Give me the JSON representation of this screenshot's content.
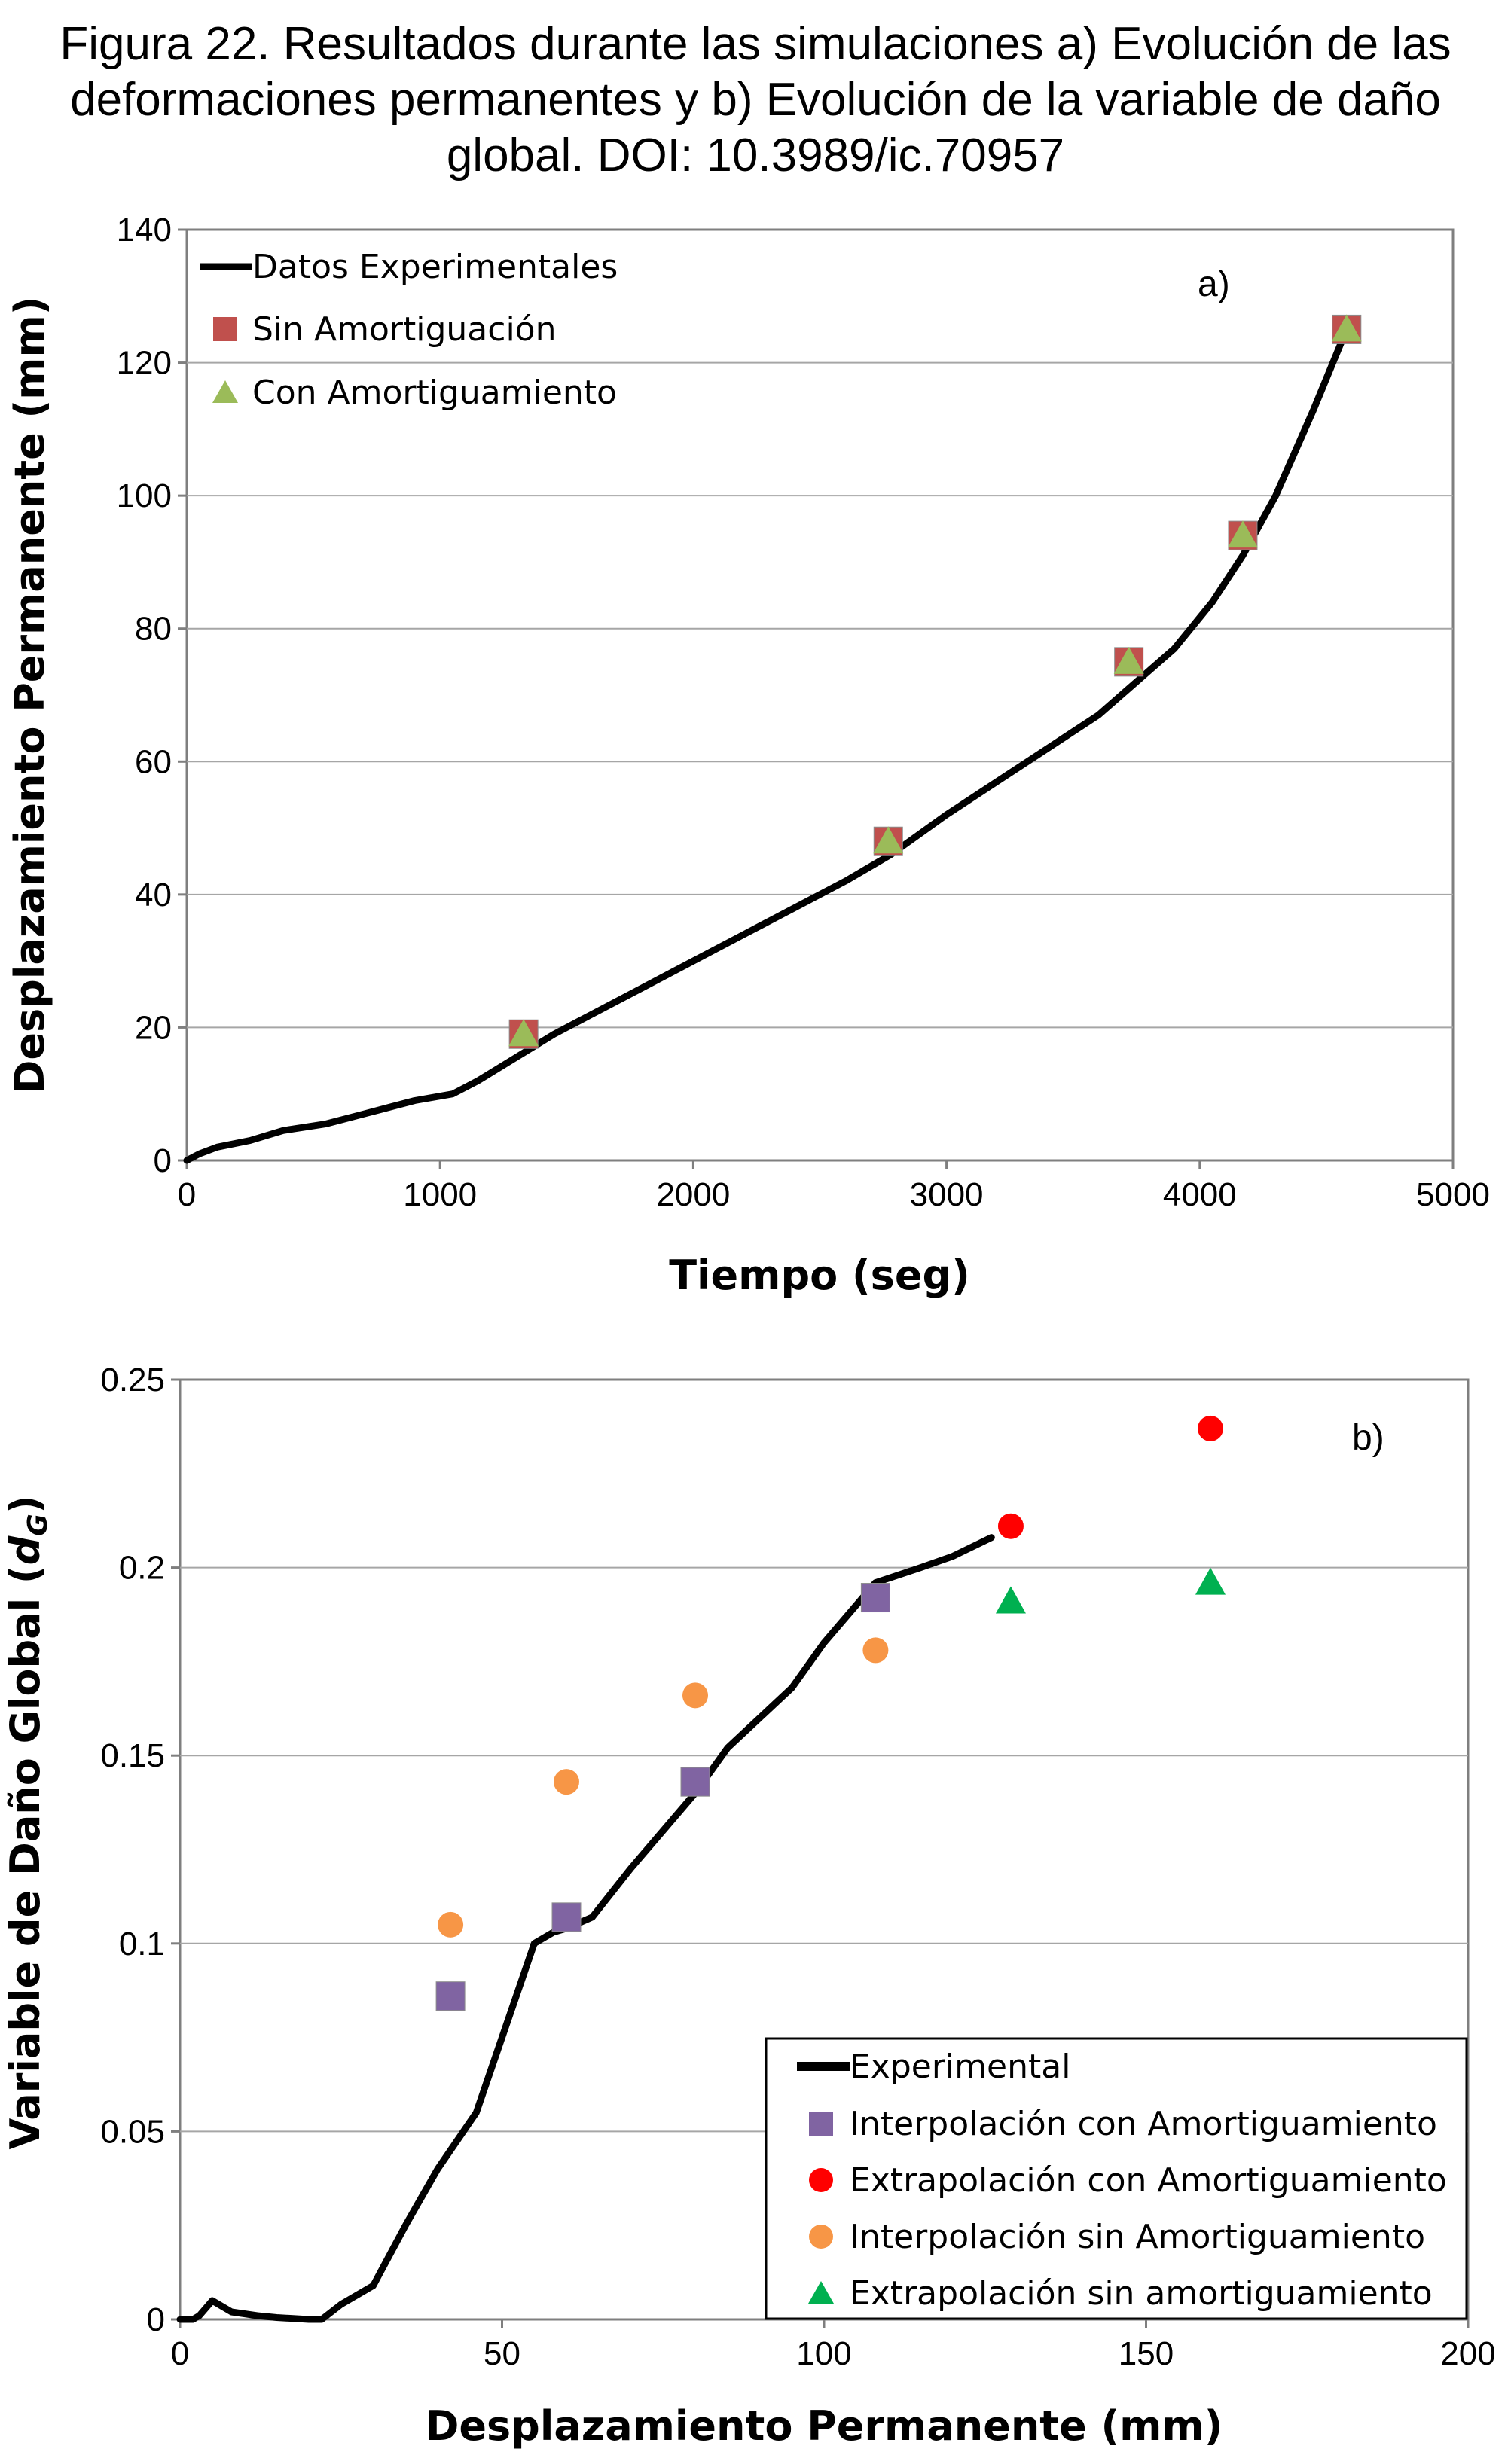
{
  "caption": {
    "line1": "Figura 22. Resultados durante las simulaciones a) Evolución de las",
    "line2": "deformaciones permanentes y b) Evolución de la variable de daño",
    "line3": "global. DOI: 10.3989/ic.70957"
  },
  "chart_data": [
    {
      "type": "line",
      "panel_label": "a)",
      "xlabel": "Tiempo  (seg)",
      "ylabel": "Desplazamiento Permanente  (mm)",
      "xlim": [
        0,
        5000
      ],
      "ylim": [
        0,
        140
      ],
      "xticks": [
        0,
        1000,
        2000,
        3000,
        4000,
        5000
      ],
      "yticks": [
        0,
        20,
        40,
        60,
        80,
        100,
        120,
        140
      ],
      "grid": "horizontal",
      "legend_position": "top-left",
      "series": [
        {
          "name": "Datos Experimentales",
          "kind": "line",
          "color": "#000000",
          "x": [
            0,
            50,
            120,
            250,
            380,
            550,
            700,
            900,
            1050,
            1150,
            1300,
            1450,
            1600,
            1800,
            2000,
            2200,
            2400,
            2600,
            2780,
            3000,
            3200,
            3400,
            3600,
            3720,
            3900,
            4050,
            4170,
            4300,
            4450,
            4580
          ],
          "y": [
            0,
            1,
            2,
            3,
            4.5,
            5.5,
            7,
            9,
            10,
            12,
            15.5,
            19,
            22,
            26,
            30,
            34,
            38,
            42,
            46,
            52,
            57,
            62,
            67,
            71,
            77,
            84,
            91,
            100,
            113,
            125
          ]
        },
        {
          "name": "Sin Amortiguación",
          "kind": "marker",
          "marker": "square",
          "color": "#c0504d",
          "x": [
            1330,
            2770,
            3720,
            4170,
            4580
          ],
          "y": [
            19,
            48,
            75,
            94,
            125
          ]
        },
        {
          "name": "Con Amortiguamiento",
          "kind": "marker",
          "marker": "triangle",
          "color": "#9bbb59",
          "x": [
            1330,
            2770,
            3720,
            4170,
            4580
          ],
          "y": [
            19,
            48,
            75,
            94,
            125
          ]
        }
      ]
    },
    {
      "type": "line",
      "panel_label": "b)",
      "xlabel": "Desplazamiento Permanente  (mm)",
      "ylabel": "Variable de Daño Global  (",
      "ylabel_symbol": "d",
      "ylabel_subscript": "G",
      "ylabel_end": ")",
      "xlim": [
        0,
        200
      ],
      "ylim": [
        0,
        0.25
      ],
      "xticks": [
        0,
        50,
        100,
        150,
        200
      ],
      "yticks": [
        0,
        0.05,
        0.1,
        0.15,
        0.2,
        0.25
      ],
      "yticklabels": [
        "0",
        "0.05",
        "0.1",
        "0.15",
        "0.2",
        "0.25"
      ],
      "grid": "horizontal",
      "legend_position": "bottom-right",
      "series": [
        {
          "name": "Experimental",
          "kind": "line",
          "color": "#000000",
          "x": [
            0,
            2,
            3,
            5,
            8,
            12,
            15,
            20,
            22,
            25,
            30,
            35,
            40,
            46,
            50,
            55,
            58,
            60,
            64,
            70,
            80,
            85,
            95,
            100,
            108,
            115,
            120,
            126
          ],
          "y": [
            0,
            0,
            0.001,
            0.005,
            0.002,
            0.001,
            0.0005,
            0,
            0,
            0.004,
            0.009,
            0.025,
            0.04,
            0.055,
            0.075,
            0.1,
            0.103,
            0.104,
            0.107,
            0.12,
            0.14,
            0.152,
            0.168,
            0.18,
            0.196,
            0.2,
            0.203,
            0.208
          ]
        },
        {
          "name": "Interpolación con Amortiguamiento",
          "kind": "marker",
          "marker": "square",
          "color": "#8064a2",
          "x": [
            42,
            60,
            80,
            108
          ],
          "y": [
            0.086,
            0.107,
            0.143,
            0.192
          ]
        },
        {
          "name": "Extrapolación con Amortiguamiento",
          "kind": "marker",
          "marker": "circle",
          "color": "#ff0000",
          "x": [
            129,
            160
          ],
          "y": [
            0.211,
            0.237
          ]
        },
        {
          "name": "Interpolación sin Amortiguamiento",
          "kind": "marker",
          "marker": "circle",
          "color": "#f79646",
          "x": [
            42,
            60,
            80,
            108
          ],
          "y": [
            0.105,
            0.143,
            0.166,
            0.178
          ]
        },
        {
          "name": "Extrapolación sin amortiguamiento",
          "kind": "marker",
          "marker": "triangle",
          "color": "#00b050",
          "x": [
            129,
            160
          ],
          "y": [
            0.191,
            0.196
          ]
        }
      ]
    }
  ]
}
